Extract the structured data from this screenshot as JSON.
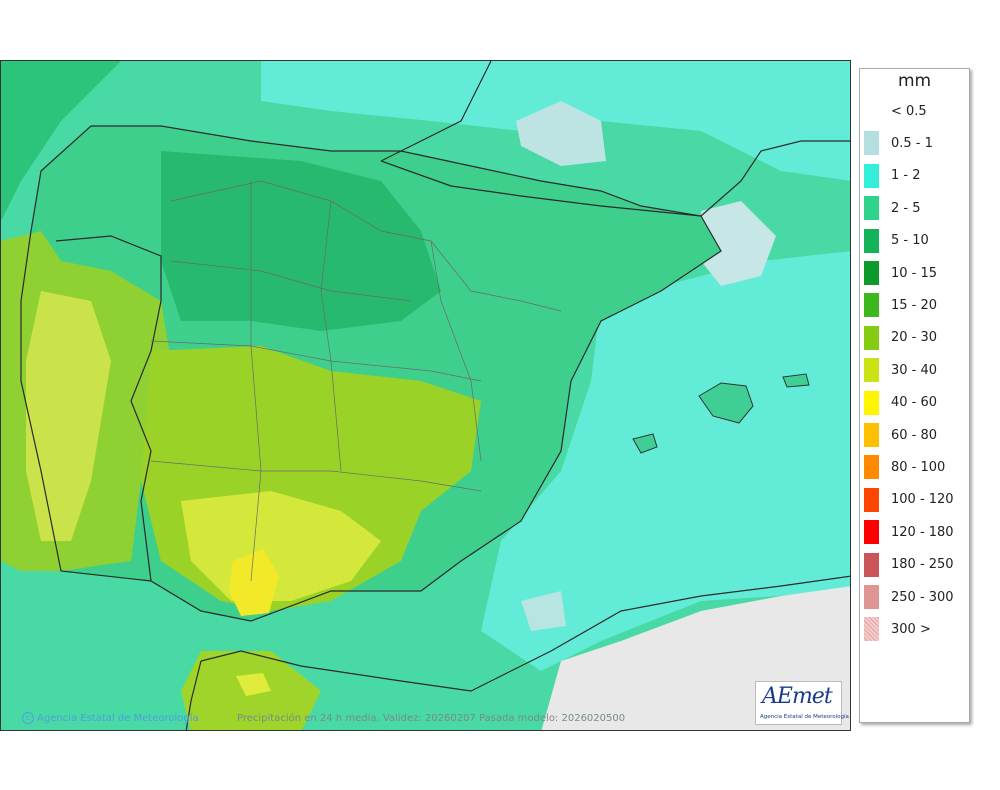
{
  "legend": {
    "title": "mm",
    "items": [
      {
        "label": "< 0.5",
        "color": "#ffffff"
      },
      {
        "label": "0.5 - 1",
        "color": "#b4dfe0"
      },
      {
        "label": "1 - 2",
        "color": "#33eed9"
      },
      {
        "label": "2 - 5",
        "color": "#2ed48b"
      },
      {
        "label": "5 - 10",
        "color": "#14b35a"
      },
      {
        "label": "10 - 15",
        "color": "#0c9a2a"
      },
      {
        "label": "15 - 20",
        "color": "#3cb81e"
      },
      {
        "label": "20 - 30",
        "color": "#84cc14"
      },
      {
        "label": "30 - 40",
        "color": "#cbe315"
      },
      {
        "label": "40 - 60",
        "color": "#fff500"
      },
      {
        "label": "60 - 80",
        "color": "#ffc000"
      },
      {
        "label": "80 - 100",
        "color": "#ff8a00"
      },
      {
        "label": "100 - 120",
        "color": "#ff4600"
      },
      {
        "label": "120 - 180",
        "color": "#ff0000"
      },
      {
        "label": "180 - 250",
        "color": "#c9555b"
      },
      {
        "label": "250 - 300",
        "color": "#e09595"
      },
      {
        "label": "300 >",
        "color": "#f4cccc"
      }
    ]
  },
  "credits": {
    "agency": "Agencia Estatal de Meteorología",
    "info": "Precipitación en 24 h media. Validez: 20260207 Pasada modelo: 2026020500"
  },
  "logo": {
    "word": "AEmet",
    "subtitle": "Agencia Estatal de Meteorología"
  }
}
